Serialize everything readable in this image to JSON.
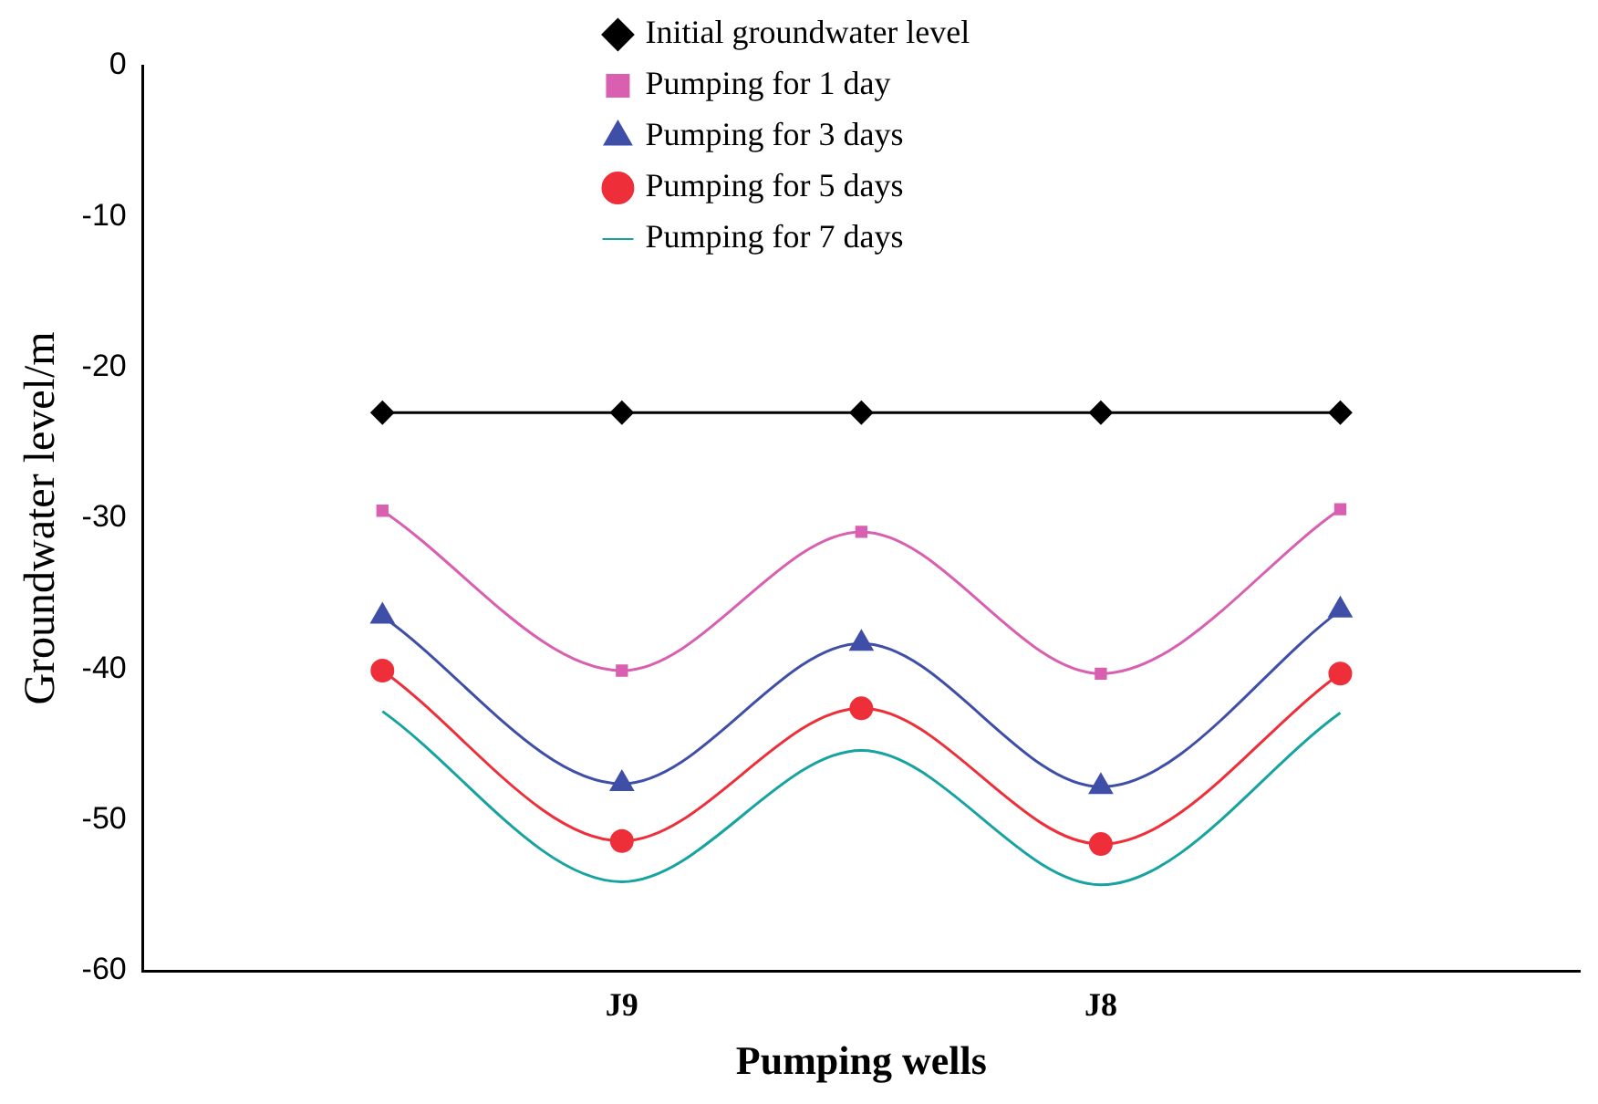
{
  "chart_data": {
    "type": "line",
    "xlabel": "Pumping wells",
    "ylabel": "Groundwater level/m",
    "categories": [
      null,
      "J9",
      null,
      "J8",
      null
    ],
    "ylim": [
      -60,
      0
    ],
    "yticks": [
      -60,
      -50,
      -40,
      -30,
      -20,
      -10,
      0
    ],
    "grid": false,
    "legend": "top",
    "series": [
      {
        "name": "Initial groundwater level",
        "color": "#000000",
        "marker": "diamond",
        "values": [
          -23,
          -23,
          -23,
          -23,
          -23
        ]
      },
      {
        "name": "Pumping for 1 day",
        "color": "#d95fb0",
        "marker": "square",
        "values": [
          -29.5,
          -40.1,
          -30.9,
          -40.3,
          -29.4
        ]
      },
      {
        "name": "Pumping for 3 days",
        "color": "#3f4fa8",
        "marker": "triangle",
        "values": [
          -36.5,
          -47.6,
          -38.3,
          -47.8,
          -36.1
        ]
      },
      {
        "name": "Pumping for 5 days",
        "color": "#ee2f3a",
        "marker": "circle",
        "values": [
          -40.1,
          -51.4,
          -42.6,
          -51.6,
          -40.3
        ]
      },
      {
        "name": "Pumping for 7 days",
        "color": "#17a3a0",
        "marker": "none",
        "values": [
          -42.8,
          -54.1,
          -45.4,
          -54.3,
          -42.9
        ]
      }
    ]
  }
}
